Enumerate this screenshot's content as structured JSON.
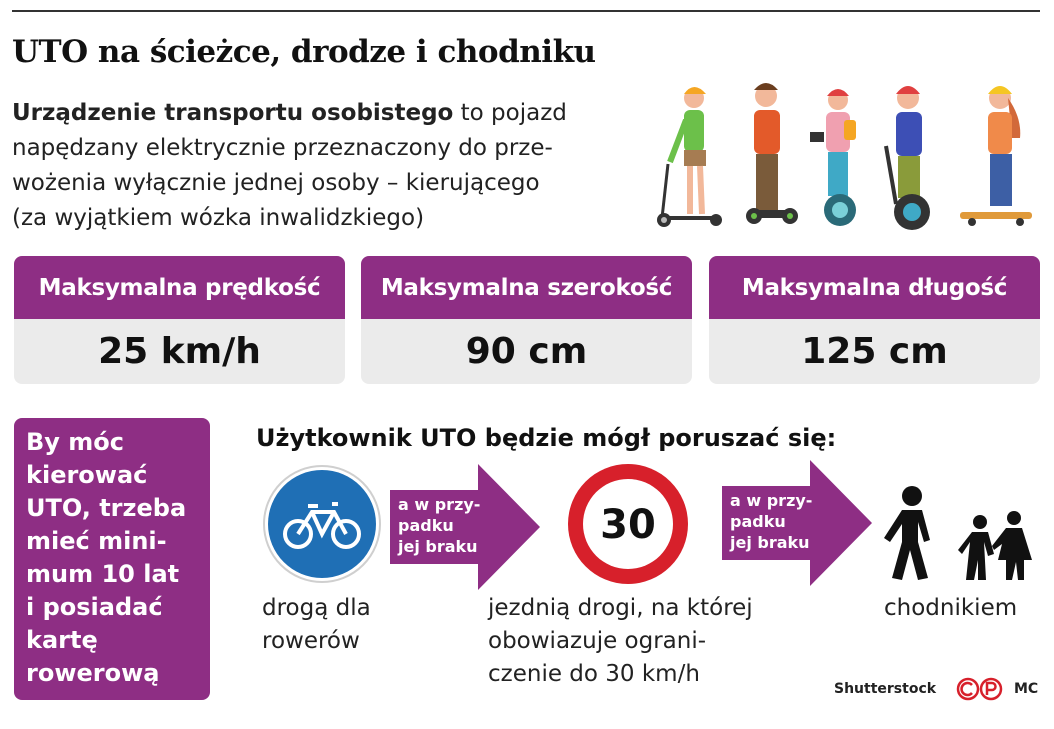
{
  "header": {
    "title": "UTO na ścieżce, drodze i chodniku",
    "intro_bold": "Urządzenie transportu osobistego",
    "intro_lines": [
      " to pojazd",
      "napędzany elektrycznie przeznaczony do prze-",
      "wożenia wyłącznie jednej osoby – kierującego",
      "(za wyjątkiem wózka inwalidzkiego)"
    ]
  },
  "stats": [
    {
      "label": "Maksymalna prędkość",
      "value": "25 km/h"
    },
    {
      "label": "Maksymalna szerokość",
      "value": "90 cm"
    },
    {
      "label": "Maksymalna długość",
      "value": "125 cm"
    }
  ],
  "age_box": {
    "lines": [
      "By móc",
      "kierować",
      "UTO, trzeba",
      "mieć mini-",
      "mum 10 lat",
      "i posiadać",
      "kartę",
      "rowerową"
    ]
  },
  "uses": {
    "title": "Użytkownik UTO będzie mógł poruszać się:",
    "bike_caption": [
      "drogą dla",
      "rowerów"
    ],
    "arrow1": [
      "a w przy-",
      "padku",
      "jej braku"
    ],
    "speed_sign": "30",
    "road_caption": [
      "jezdnią drogi, na której",
      "obowiazuje ograni-",
      "czenie do 30 km/h"
    ],
    "arrow2": [
      "a w przy-",
      "padku",
      "jej braku"
    ],
    "sidewalk_caption": "chodnikiem"
  },
  "credits": {
    "source": "Shutterstock",
    "author": "MC"
  },
  "colors": {
    "accent": "#8e2e84",
    "value_bg": "#ebebeb",
    "sign_blue": "#1f6fb5",
    "sign_red": "#d7202b"
  }
}
